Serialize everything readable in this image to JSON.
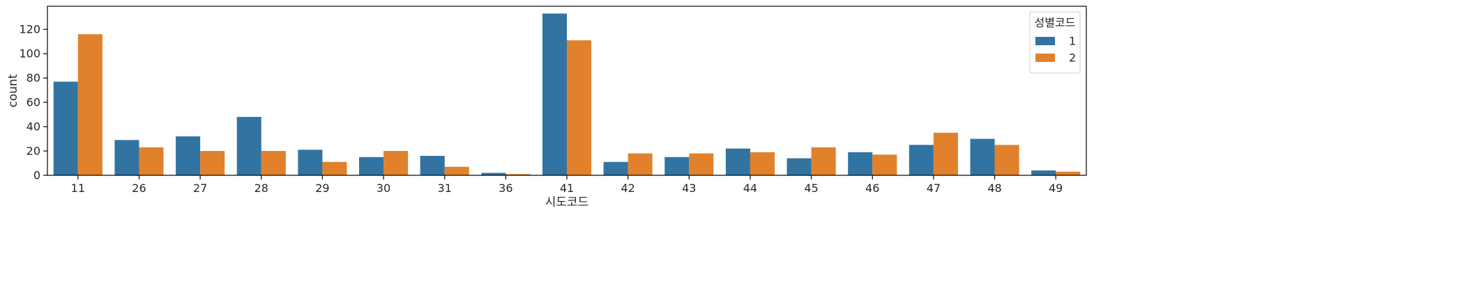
{
  "chart_data": {
    "type": "bar",
    "xlabel": "시도코드",
    "ylabel": "count",
    "categories": [
      "11",
      "26",
      "27",
      "28",
      "29",
      "30",
      "31",
      "36",
      "41",
      "42",
      "43",
      "44",
      "45",
      "46",
      "47",
      "48",
      "49"
    ],
    "yticks": [
      0,
      20,
      40,
      60,
      80,
      100,
      120
    ],
    "ylim": [
      0,
      139
    ],
    "grid": false,
    "legend": {
      "title": "성별코드",
      "position": "top-right"
    },
    "series": [
      {
        "name": "1",
        "color": "#3274a1",
        "values": [
          77,
          29,
          32,
          48,
          21,
          15,
          16,
          2,
          133,
          11,
          15,
          22,
          14,
          19,
          25,
          30,
          4
        ]
      },
      {
        "name": "2",
        "color": "#e1812c",
        "values": [
          116,
          23,
          20,
          20,
          11,
          20,
          7,
          1,
          111,
          18,
          18,
          19,
          23,
          17,
          35,
          25,
          3
        ]
      }
    ]
  }
}
